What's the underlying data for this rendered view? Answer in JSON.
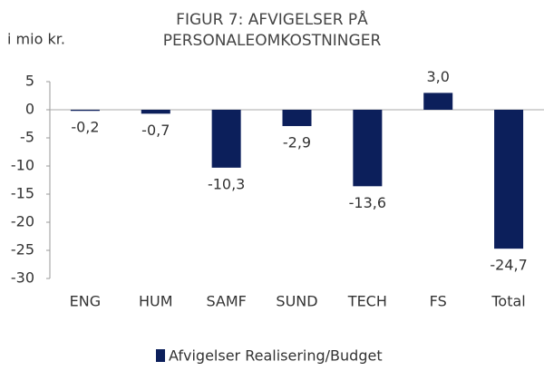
{
  "chart_data": {
    "type": "bar",
    "title": [
      "FIGUR 7: AFVIGELSER PÅ",
      "PERSONALEOMKOSTNINGER"
    ],
    "y_label": "i mio kr.",
    "categories": [
      "ENG",
      "HUM",
      "SAMF",
      "SUND",
      "TECH",
      "FS",
      "Total"
    ],
    "series": [
      {
        "name": "Afvigelser Realisering/Budget",
        "color": "#0c1f5b",
        "values": [
          -0.2,
          -0.7,
          -10.3,
          -2.9,
          -13.6,
          3.0,
          -24.7
        ],
        "value_labels": [
          "-0,2",
          "-0,7",
          "-10,3",
          "-2,9",
          "-13,6",
          "3,0",
          "-24,7"
        ]
      }
    ],
    "ylim": [
      -30,
      5
    ],
    "yticks": [
      5,
      0,
      -5,
      -10,
      -15,
      -20,
      -25,
      -30
    ],
    "legend": "bottom"
  }
}
